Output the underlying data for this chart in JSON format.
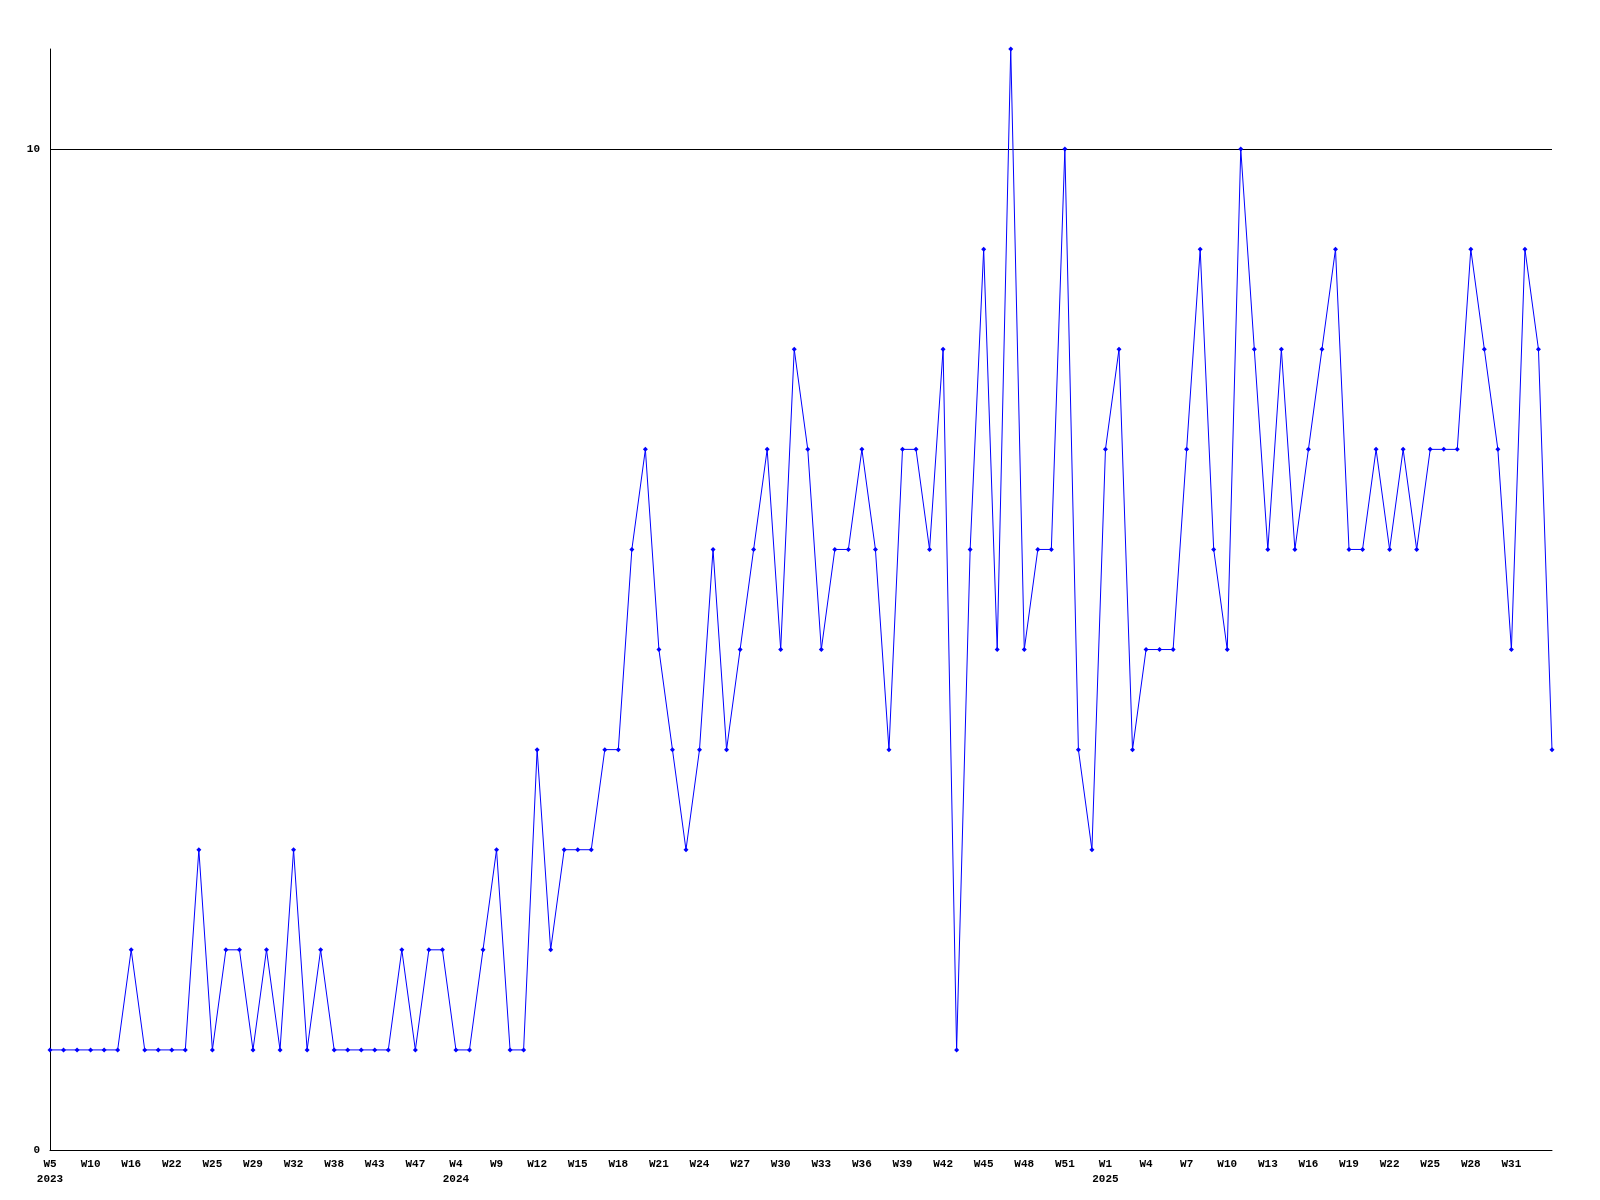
{
  "chart_data": {
    "type": "line",
    "categories": [
      "W5\n2023",
      null,
      null,
      "W10",
      null,
      null,
      "W16",
      null,
      null,
      "W22",
      null,
      null,
      "W25",
      null,
      null,
      "W29",
      null,
      null,
      "W32",
      null,
      null,
      "W38",
      null,
      null,
      "W43",
      null,
      null,
      "W47",
      null,
      null,
      "W4\n2024",
      null,
      null,
      "W9",
      null,
      null,
      "W12",
      null,
      null,
      "W15",
      null,
      null,
      "W18",
      null,
      null,
      "W21",
      null,
      null,
      "W24",
      null,
      null,
      "W27",
      null,
      null,
      "W30",
      null,
      null,
      "W33",
      null,
      null,
      "W36",
      null,
      null,
      "W39",
      null,
      null,
      "W42",
      null,
      null,
      "W45",
      null,
      null,
      "W48",
      null,
      null,
      "W51",
      null,
      null,
      "W1\n2025",
      null,
      null,
      "W4",
      null,
      null,
      "W7",
      null,
      null,
      "W10",
      null,
      null,
      "W13",
      null,
      null,
      "W16",
      null,
      null,
      "W19",
      null,
      null,
      "W22",
      null,
      null,
      "W25",
      null,
      null,
      "W28",
      null,
      null,
      "W31",
      null,
      null,
      null
    ],
    "series": [
      {
        "color": "#0000ff",
        "values": [
          1,
          1,
          1,
          1,
          1,
          1,
          2,
          1,
          1,
          1,
          1,
          3,
          1,
          2,
          2,
          1,
          2,
          1,
          3,
          1,
          2,
          1,
          1,
          1,
          1,
          1,
          2,
          1,
          2,
          2,
          1,
          1,
          2,
          3,
          1,
          1,
          4,
          2,
          3,
          3,
          3,
          4,
          4,
          6,
          7,
          5,
          4,
          3,
          4,
          6,
          4,
          5,
          6,
          7,
          5,
          8,
          7,
          5,
          6,
          6,
          7,
          6,
          4,
          7,
          7,
          6,
          8,
          1,
          6,
          9,
          5,
          11,
          5,
          6,
          6,
          10,
          4,
          3,
          7,
          8,
          4,
          5,
          5,
          5,
          7,
          9,
          6,
          5,
          10,
          8,
          6,
          8,
          6,
          7,
          8,
          9,
          6,
          6,
          7,
          6,
          7,
          6,
          7,
          7,
          7,
          9,
          8,
          7,
          5,
          9,
          8,
          4
        ]
      }
    ],
    "ylim": [
      0,
      11
    ],
    "yticks": [
      0,
      10
    ],
    "grid": "y",
    "marker": "diamond",
    "line_style": "solid"
  }
}
